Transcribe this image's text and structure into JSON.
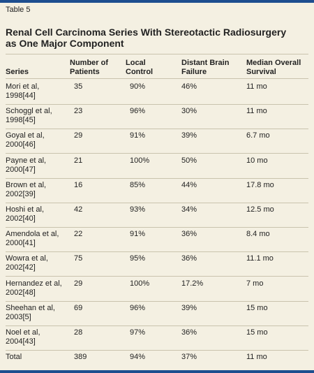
{
  "header": {
    "label": "Table 5",
    "title": "Renal Cell Carcinoma Series With Stereotactic Radiosurgery as One Major Component"
  },
  "table": {
    "columns": [
      "Series",
      "Number of Patients",
      "Local Control",
      "Distant Brain Failure",
      "Median Overall Survival"
    ],
    "rows": [
      [
        "Mori et al, 1998[44]",
        "35",
        "90%",
        "46%",
        "11 mo"
      ],
      [
        "Schoggl et al, 1998[45]",
        "23",
        "96%",
        "30%",
        "11 mo"
      ],
      [
        "Goyal et al, 2000[46]",
        "29",
        "91%",
        "39%",
        "6.7 mo"
      ],
      [
        "Payne et al, 2000[47]",
        "21",
        "100%",
        "50%",
        "10 mo"
      ],
      [
        "Brown et al, 2002[39]",
        "16",
        "85%",
        "44%",
        "17.8 mo"
      ],
      [
        "Hoshi et al, 2002[40]",
        "42",
        "93%",
        "34%",
        "12.5 mo"
      ],
      [
        "Amendola et al, 2000[41]",
        "22",
        "91%",
        "36%",
        "8.4 mo"
      ],
      [
        "Wowra et al, 2002[42]",
        "75",
        "95%",
        "36%",
        "11.1 mo"
      ],
      [
        "Hernandez et al, 2002[48]",
        "29",
        "100%",
        "17.2%",
        "7 mo"
      ],
      [
        "Sheehan et al, 2003[5]",
        "69",
        "96%",
        "39%",
        "15 mo"
      ],
      [
        "Noel et al, 2004[43]",
        "28",
        "97%",
        "36%",
        "15 mo"
      ],
      [
        "Total",
        "389",
        "94%",
        "37%",
        "11 mo"
      ]
    ]
  }
}
